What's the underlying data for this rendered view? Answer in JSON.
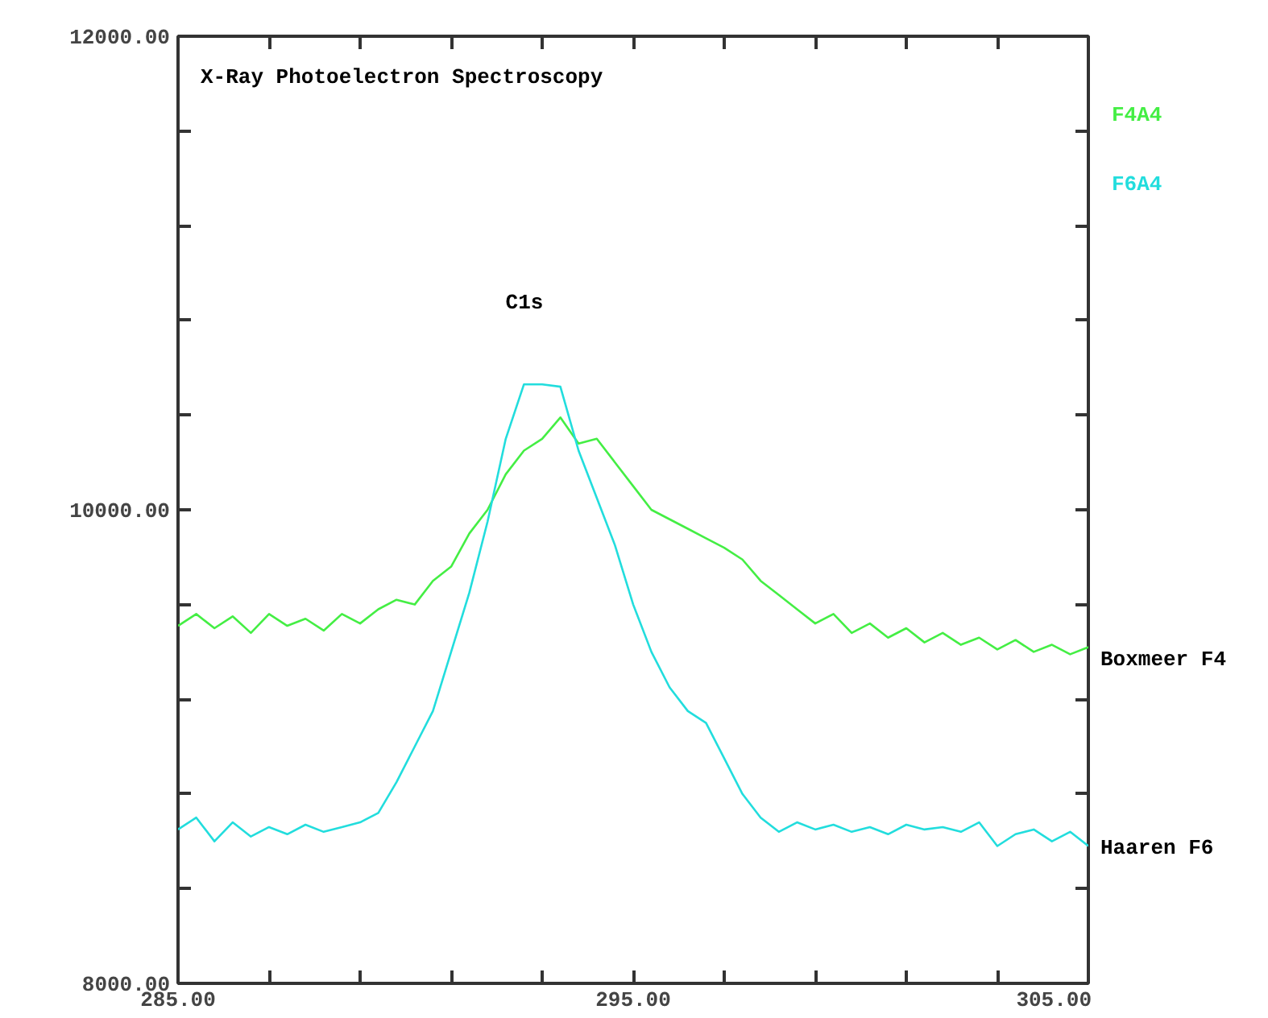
{
  "chart_data": {
    "type": "line",
    "title": "X-Ray Photoelectron Spectroscopy",
    "x": [
      285.0,
      285.4,
      285.8,
      286.2,
      286.6,
      287.0,
      287.4,
      287.8,
      288.2,
      288.6,
      289.0,
      289.4,
      289.8,
      290.2,
      290.6,
      291.0,
      291.4,
      291.8,
      292.2,
      292.6,
      293.0,
      293.4,
      293.8,
      294.2,
      294.6,
      295.0,
      295.4,
      295.8,
      296.2,
      296.6,
      297.0,
      297.4,
      297.8,
      298.2,
      298.6,
      299.0,
      299.4,
      299.8,
      300.2,
      300.6,
      301.0,
      301.4,
      301.8,
      302.2,
      302.6,
      303.0,
      303.4,
      303.8,
      304.2,
      304.6,
      305.0
    ],
    "series": [
      {
        "name": "F4A4",
        "color": "#44ee44",
        "values": [
          9510,
          9560,
          9500,
          9550,
          9480,
          9560,
          9510,
          9540,
          9490,
          9560,
          9520,
          9580,
          9620,
          9600,
          9700,
          9760,
          9900,
          10000,
          10150,
          10250,
          10300,
          10390,
          10280,
          10300,
          10200,
          10100,
          10000,
          9960,
          9920,
          9880,
          9840,
          9790,
          9700,
          9640,
          9580,
          9520,
          9560,
          9480,
          9520,
          9460,
          9500,
          9440,
          9480,
          9430,
          9460,
          9410,
          9450,
          9400,
          9430,
          9390,
          9420
        ]
      },
      {
        "name": "F6A4",
        "color": "#22dddd",
        "values": [
          8650,
          8700,
          8600,
          8680,
          8620,
          8660,
          8630,
          8670,
          8640,
          8660,
          8680,
          8720,
          8850,
          9000,
          9150,
          9400,
          9650,
          9950,
          10300,
          10530,
          10530,
          10520,
          10250,
          10050,
          9850,
          9600,
          9400,
          9250,
          9150,
          9100,
          8950,
          8800,
          8700,
          8640,
          8680,
          8650,
          8670,
          8640,
          8660,
          8630,
          8670,
          8650,
          8660,
          8640,
          8680,
          8580,
          8630,
          8650,
          8600,
          8640,
          8580
        ]
      }
    ],
    "xlim": [
      285,
      305
    ],
    "xticks": [
      {
        "value": 285,
        "label": "285.00"
      },
      {
        "value": 287,
        "label": null
      },
      {
        "value": 289,
        "label": null
      },
      {
        "value": 291,
        "label": null
      },
      {
        "value": 293,
        "label": null
      },
      {
        "value": 295,
        "label": "295.00"
      },
      {
        "value": 297,
        "label": null
      },
      {
        "value": 299,
        "label": null
      },
      {
        "value": 301,
        "label": null
      },
      {
        "value": 303,
        "label": null
      },
      {
        "value": 305,
        "label": "305.00"
      }
    ],
    "ylim": [
      8000,
      12000
    ],
    "yticks": [
      {
        "value": 8000,
        "label": "8000.00"
      },
      {
        "value": 8400,
        "label": null
      },
      {
        "value": 8800,
        "label": null
      },
      {
        "value": 9200,
        "label": null
      },
      {
        "value": 9600,
        "label": null
      },
      {
        "value": 10000,
        "label": "10000.00"
      },
      {
        "value": 10400,
        "label": null
      },
      {
        "value": 10800,
        "label": null
      },
      {
        "value": 11200,
        "label": null
      },
      {
        "value": 11600,
        "label": null
      },
      {
        "value": 12000,
        "label": "12000.00"
      }
    ],
    "annotations": [
      "C1s",
      {
        "text": "Boxmeer F4",
        "x": 305,
        "y": 9400
      },
      {
        "text": "Haaren F6",
        "x": 305,
        "y": 8600
      }
    ],
    "grid": false,
    "legend": false,
    "marker": "none",
    "line_style": "solid"
  }
}
